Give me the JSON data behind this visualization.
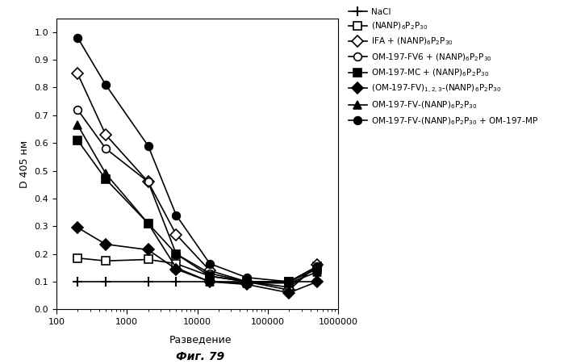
{
  "xlabel": "Разведение",
  "ylabel": "D 405 нм",
  "fig_note": "Фиг. 79",
  "xlim": [
    100,
    1000000
  ],
  "ylim": [
    0,
    1.05
  ],
  "yticks": [
    0,
    0.1,
    0.2,
    0.3,
    0.4,
    0.5,
    0.6,
    0.7,
    0.8,
    0.9,
    1.0
  ],
  "xticks": [
    100,
    1000,
    10000,
    100000,
    1000000
  ],
  "xtick_labels": [
    "100",
    "1000",
    "10000",
    "100000",
    "1000000"
  ],
  "series": [
    {
      "label": "NaCl",
      "marker": "plus",
      "x": [
        200,
        500,
        2000,
        5000,
        15000,
        50000,
        200000,
        500000
      ],
      "y": [
        0.1,
        0.1,
        0.1,
        0.1,
        0.1,
        0.1,
        0.1,
        0.1
      ]
    },
    {
      "label": "sq_open",
      "marker": "square_open",
      "x": [
        200,
        500,
        2000,
        5000,
        15000,
        50000,
        200000,
        500000
      ],
      "y": [
        0.185,
        0.175,
        0.18,
        0.165,
        0.12,
        0.1,
        0.1,
        0.155
      ]
    },
    {
      "label": "dia_open",
      "marker": "diamond_open",
      "x": [
        200,
        500,
        2000,
        5000,
        15000,
        50000,
        200000,
        500000
      ],
      "y": [
        0.85,
        0.63,
        0.46,
        0.27,
        0.14,
        0.1,
        0.07,
        0.16
      ]
    },
    {
      "label": "circ_open",
      "marker": "circle_open",
      "x": [
        200,
        500,
        2000,
        5000,
        15000,
        50000,
        200000,
        500000
      ],
      "y": [
        0.72,
        0.58,
        0.46,
        0.2,
        0.13,
        0.1,
        0.08,
        0.155
      ]
    },
    {
      "label": "sq_filled",
      "marker": "square_filled",
      "x": [
        200,
        500,
        2000,
        5000,
        15000,
        50000,
        200000,
        500000
      ],
      "y": [
        0.61,
        0.47,
        0.31,
        0.2,
        0.12,
        0.1,
        0.1,
        0.145
      ]
    },
    {
      "label": "dia_filled",
      "marker": "diamond_filled",
      "x": [
        200,
        500,
        2000,
        5000,
        15000,
        50000,
        200000,
        500000
      ],
      "y": [
        0.295,
        0.235,
        0.215,
        0.145,
        0.1,
        0.09,
        0.06,
        0.1
      ]
    },
    {
      "label": "tri_filled",
      "marker": "triangle_filled",
      "x": [
        200,
        500,
        2000,
        5000,
        15000,
        50000,
        200000,
        500000
      ],
      "y": [
        0.665,
        0.49,
        0.31,
        0.15,
        0.1,
        0.095,
        0.095,
        0.135
      ]
    },
    {
      "label": "circ_filled",
      "marker": "circle_filled",
      "x": [
        200,
        500,
        2000,
        5000,
        15000,
        50000,
        200000,
        500000
      ],
      "y": [
        0.98,
        0.81,
        0.59,
        0.34,
        0.165,
        0.115,
        0.1,
        0.155
      ]
    }
  ],
  "legend_labels": [
    "NaCl",
    "(NANP)$_6$P$_2$P$_{30}$",
    "IFA + (NANP)$_6$P$_2$P$_{30}$",
    "OM-197-FV6 + (NANP)$_6$P$_2$P$_{30}$",
    "OM-197-MC + (NANP)$_6$P$_2$P$_{30}$",
    "(OM-197-FV)$_{1,2,3}$-(NANP)$_6$P$_2$P$_{30}$",
    "OM-197-FV-(NANP)$_6$P$_2$P$_{30}$",
    "OM-197-FV-(NANP)$_6$P$_2$P$_{30}$ + OM-197-MP"
  ]
}
